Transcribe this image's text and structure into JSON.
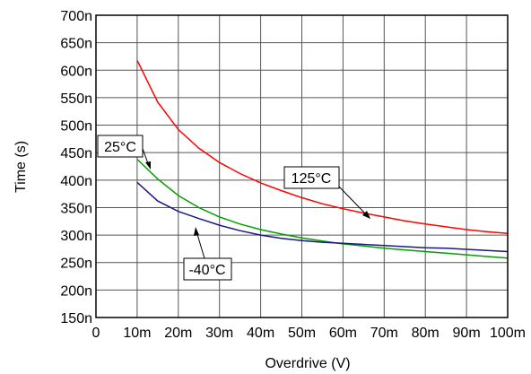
{
  "chart_data": {
    "type": "line",
    "xlabel": "Overdrive (V)",
    "ylabel": "Time (s)",
    "xlim": [
      0,
      0.1
    ],
    "ylim": [
      1.5e-07,
      7e-07
    ],
    "x_ticks": [
      {
        "value": 0,
        "label": "0"
      },
      {
        "value": 0.01,
        "label": "10m"
      },
      {
        "value": 0.02,
        "label": "20m"
      },
      {
        "value": 0.03,
        "label": "30m"
      },
      {
        "value": 0.04,
        "label": "40m"
      },
      {
        "value": 0.05,
        "label": "50m"
      },
      {
        "value": 0.06,
        "label": "60m"
      },
      {
        "value": 0.07,
        "label": "70m"
      },
      {
        "value": 0.08,
        "label": "80m"
      },
      {
        "value": 0.09,
        "label": "90m"
      },
      {
        "value": 0.1,
        "label": "100m"
      }
    ],
    "y_ticks": [
      {
        "value": 1.5e-07,
        "label": "150n"
      },
      {
        "value": 2e-07,
        "label": "200n"
      },
      {
        "value": 2.5e-07,
        "label": "250n"
      },
      {
        "value": 3e-07,
        "label": "300n"
      },
      {
        "value": 3.5e-07,
        "label": "350n"
      },
      {
        "value": 4e-07,
        "label": "400n"
      },
      {
        "value": 4.5e-07,
        "label": "450n"
      },
      {
        "value": 5e-07,
        "label": "500n"
      },
      {
        "value": 5.5e-07,
        "label": "550n"
      },
      {
        "value": 6e-07,
        "label": "600n"
      },
      {
        "value": 6.5e-07,
        "label": "650n"
      },
      {
        "value": 7e-07,
        "label": "700n"
      }
    ],
    "grid": true,
    "series": [
      {
        "name": "125°C",
        "color": "#ff0000",
        "x": [
          0.01,
          0.015,
          0.02,
          0.025,
          0.03,
          0.035,
          0.04,
          0.045,
          0.05,
          0.055,
          0.06,
          0.065,
          0.07,
          0.075,
          0.08,
          0.085,
          0.09,
          0.095,
          0.1
        ],
        "y": [
          6.18e-07,
          5.42e-07,
          4.92e-07,
          4.58e-07,
          4.32e-07,
          4.12e-07,
          3.95e-07,
          3.81e-07,
          3.68e-07,
          3.57e-07,
          3.48e-07,
          3.4e-07,
          3.33e-07,
          3.26e-07,
          3.2e-07,
          3.15e-07,
          3.1e-07,
          3.06e-07,
          3.03e-07
        ]
      },
      {
        "name": "25°C",
        "color": "#00a000",
        "x": [
          0.01,
          0.015,
          0.02,
          0.025,
          0.03,
          0.035,
          0.04,
          0.045,
          0.05,
          0.055,
          0.06,
          0.065,
          0.07,
          0.075,
          0.08,
          0.085,
          0.09,
          0.095,
          0.1
        ],
        "y": [
          4.38e-07,
          4.02e-07,
          3.72e-07,
          3.5e-07,
          3.33e-07,
          3.2e-07,
          3.1e-07,
          3.02e-07,
          2.95e-07,
          2.89e-07,
          2.84e-07,
          2.8e-07,
          2.76e-07,
          2.73e-07,
          2.7e-07,
          2.67e-07,
          2.64e-07,
          2.61e-07,
          2.58e-07
        ]
      },
      {
        "name": "-40°C",
        "color": "#1a1a80",
        "x": [
          0.01,
          0.015,
          0.02,
          0.025,
          0.03,
          0.035,
          0.04,
          0.045,
          0.05,
          0.055,
          0.06,
          0.065,
          0.07,
          0.075,
          0.08,
          0.085,
          0.09,
          0.095,
          0.1
        ],
        "y": [
          3.96e-07,
          3.62e-07,
          3.43e-07,
          3.3e-07,
          3.18e-07,
          3.08e-07,
          3e-07,
          2.94e-07,
          2.9e-07,
          2.87e-07,
          2.85e-07,
          2.83e-07,
          2.81e-07,
          2.79e-07,
          2.77e-07,
          2.76e-07,
          2.74e-07,
          2.72e-07,
          2.7e-07
        ]
      }
    ],
    "annotations": [
      {
        "text": "25°C",
        "points_to": {
          "x": 0.0135,
          "y": 4.16e-07
        }
      },
      {
        "text": "125°C",
        "points_to": {
          "x": 0.066,
          "y": 3.35e-07
        }
      },
      {
        "text": "-40°C",
        "points_to": {
          "x": 0.0245,
          "y": 3.32e-07
        }
      }
    ]
  }
}
